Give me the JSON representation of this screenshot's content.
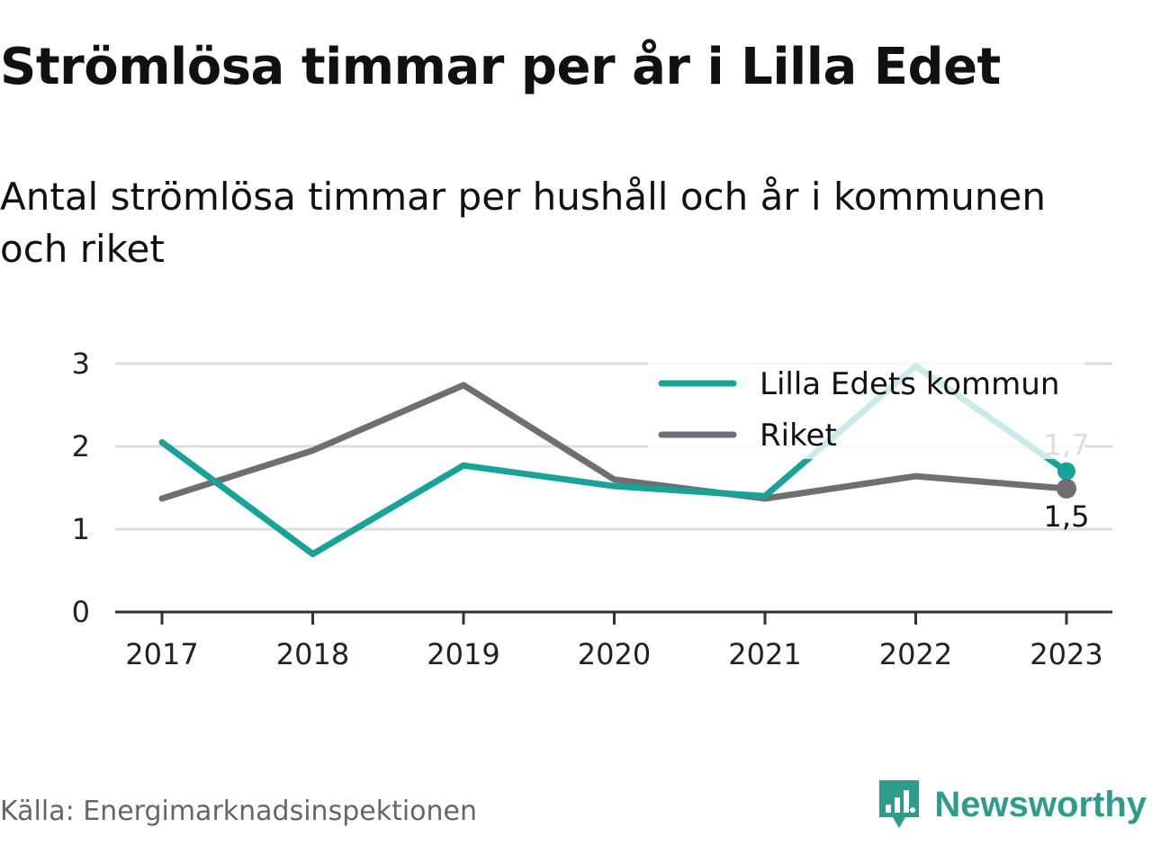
{
  "chart_data": {
    "type": "line",
    "title": "Strömlösa timmar per år i Lilla Edet",
    "subtitle": "Antal strömlösa timmar per hushåll och år i kommunen och riket",
    "x": [
      "2017",
      "2018",
      "2019",
      "2020",
      "2021",
      "2022",
      "2023"
    ],
    "yticks": [
      "0",
      "1",
      "2",
      "3"
    ],
    "ylim": [
      0,
      3.05
    ],
    "grid": true,
    "legend_position": "top-right",
    "series": [
      {
        "name": "Lilla Edets kommun",
        "color": "#17a398",
        "values": [
          2.05,
          0.7,
          1.77,
          1.52,
          1.4,
          2.97,
          1.7
        ],
        "end_label": "1,7"
      },
      {
        "name": "Riket",
        "color": "#6e6e73",
        "values": [
          1.37,
          1.95,
          2.74,
          1.6,
          1.37,
          1.64,
          1.49
        ],
        "end_label": "1,5"
      }
    ]
  },
  "source": "Källa: Energimarknadsinspektionen",
  "brand": {
    "name": "Newsworthy",
    "color": "#2e9c8c",
    "icon": "newsworthy-logo-icon"
  }
}
